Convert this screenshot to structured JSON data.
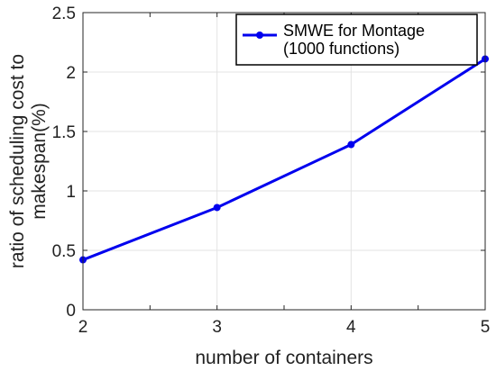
{
  "chart_data": {
    "type": "line",
    "title": "",
    "xlabel": "number of containers",
    "ylabel_lines": [
      "ratio of scheduling cost to",
      "makespan(%)"
    ],
    "x": [
      2,
      3,
      4,
      5
    ],
    "xlim": [
      2,
      5
    ],
    "ylim": [
      0,
      2.5
    ],
    "x_ticks": [
      2,
      3,
      4,
      5
    ],
    "x_minor_ticks": [
      2.5,
      3.5,
      4.5
    ],
    "y_ticks": [
      0,
      0.5,
      1,
      1.5,
      2,
      2.5
    ],
    "x_tick_labels": [
      "2",
      "3",
      "4",
      "5"
    ],
    "y_tick_labels": [
      "0",
      "0.5",
      "1",
      "1.5",
      "2",
      "2.5"
    ],
    "grid": true,
    "legend_position": "top-right",
    "series": [
      {
        "name_lines": [
          "SMWE for Montage",
          "(1000 functions)"
        ],
        "values": [
          0.42,
          0.86,
          1.39,
          2.11
        ],
        "color": "#0000ee",
        "marker": "circle"
      }
    ]
  }
}
